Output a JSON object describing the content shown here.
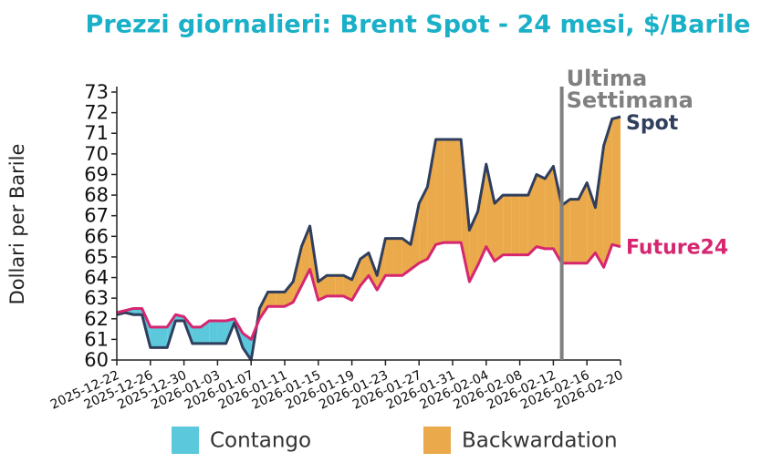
{
  "chart_data": {
    "type": "line",
    "title": "Prezzi giornalieri: Brent Spot - 24 mesi, $/Barile",
    "ylabel": "Dollari per Barile",
    "x": [
      "2025-12-22",
      "2025-12-23",
      "2025-12-24",
      "2025-12-25",
      "2025-12-26",
      "2025-12-27",
      "2025-12-28",
      "2025-12-29",
      "2025-12-30",
      "2025-12-31",
      "2026-01-01",
      "2026-01-02",
      "2026-01-03",
      "2026-01-04",
      "2026-01-05",
      "2026-01-06",
      "2026-01-07",
      "2026-01-08",
      "2026-01-09",
      "2026-01-10",
      "2026-01-11",
      "2026-01-12",
      "2026-01-13",
      "2026-01-14",
      "2026-01-15",
      "2026-01-16",
      "2026-01-17",
      "2026-01-18",
      "2026-01-19",
      "2026-01-20",
      "2026-01-21",
      "2026-01-22",
      "2026-01-23",
      "2026-01-24",
      "2026-01-25",
      "2026-01-26",
      "2026-01-27",
      "2026-01-28",
      "2026-01-29",
      "2026-01-30",
      "2026-01-31",
      "2026-02-01",
      "2026-02-02",
      "2026-02-03",
      "2026-02-04",
      "2026-02-05",
      "2026-02-06",
      "2026-02-07",
      "2026-02-08",
      "2026-02-09",
      "2026-02-10",
      "2026-02-11",
      "2026-02-12",
      "2026-02-13",
      "2026-02-14",
      "2026-02-15",
      "2026-02-16",
      "2026-02-17",
      "2026-02-18",
      "2026-02-19",
      "2026-02-20"
    ],
    "series": [
      {
        "name": "Spot",
        "color": "#2f3e5c",
        "values": [
          62.2,
          62.3,
          62.2,
          62.2,
          60.6,
          60.6,
          60.6,
          61.9,
          61.9,
          60.8,
          60.8,
          60.8,
          60.8,
          60.8,
          61.8,
          60.6,
          60.0,
          62.5,
          63.3,
          63.3,
          63.3,
          63.8,
          65.5,
          66.5,
          63.8,
          64.1,
          64.1,
          64.1,
          63.9,
          64.9,
          65.2,
          64.1,
          65.9,
          65.9,
          65.9,
          65.6,
          67.6,
          68.4,
          70.7,
          70.7,
          70.7,
          70.7,
          66.3,
          67.2,
          69.5,
          67.6,
          68.0,
          68.0,
          68.0,
          68.0,
          69.0,
          68.8,
          69.4,
          67.5,
          67.8,
          67.8,
          68.6,
          67.4,
          70.4,
          71.7,
          71.8
        ]
      },
      {
        "name": "Future24",
        "color": "#d6266f",
        "values": [
          62.3,
          62.4,
          62.5,
          62.5,
          61.6,
          61.6,
          61.6,
          62.2,
          62.1,
          61.6,
          61.6,
          61.9,
          61.9,
          61.9,
          62.0,
          61.3,
          61.0,
          62.0,
          62.6,
          62.6,
          62.6,
          62.8,
          63.6,
          64.4,
          62.9,
          63.1,
          63.1,
          63.1,
          62.9,
          63.6,
          64.1,
          63.4,
          64.1,
          64.1,
          64.1,
          64.4,
          64.7,
          64.9,
          65.6,
          65.7,
          65.7,
          65.7,
          63.8,
          64.6,
          65.5,
          64.8,
          65.1,
          65.1,
          65.1,
          65.1,
          65.5,
          65.4,
          65.4,
          64.7,
          64.7,
          64.7,
          64.7,
          65.2,
          64.5,
          65.6,
          65.5
        ]
      }
    ],
    "fills": [
      {
        "name": "Contango",
        "color": "#5bc8dc"
      },
      {
        "name": "Backwardation",
        "color": "#eaa94a"
      }
    ],
    "annotation": {
      "x": "2026-02-13",
      "text": [
        "Ultima",
        "Settimana"
      ],
      "color": "#808080"
    },
    "xlim": [
      "2025-12-22",
      "2026-02-20"
    ],
    "xticks": [
      "2025-12-22",
      "2025-12-26",
      "2025-12-30",
      "2026-01-03",
      "2026-01-07",
      "2026-01-11",
      "2026-01-15",
      "2026-01-19",
      "2026-01-23",
      "2026-01-27",
      "2026-01-31",
      "2026-02-04",
      "2026-02-08",
      "2026-02-12",
      "2026-02-16",
      "2026-02-20"
    ],
    "ylim": [
      60,
      73
    ],
    "yticks": [
      60,
      61,
      62,
      63,
      64,
      65,
      66,
      67,
      68,
      69,
      70,
      71,
      72,
      73
    ]
  }
}
